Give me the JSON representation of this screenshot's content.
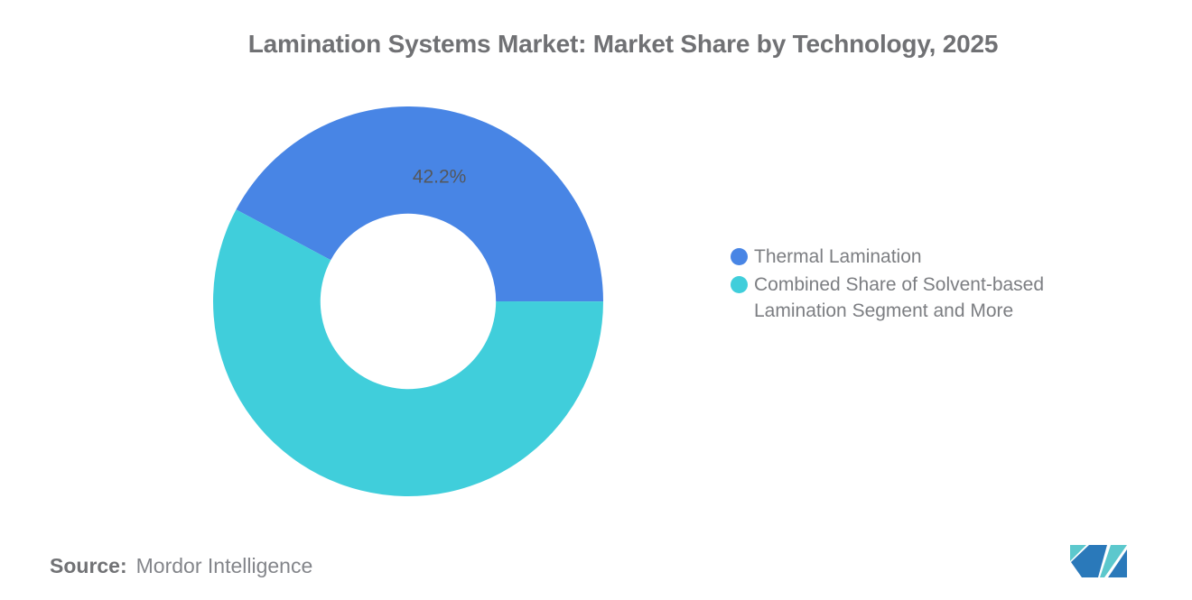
{
  "header": {
    "title": "Lamination Systems Market: Market Share by Technology, 2025"
  },
  "chart_data": {
    "type": "pie",
    "subtype": "donut",
    "title": "Lamination Systems Market: Market Share by Technology, 2025",
    "categories": [
      "Thermal Lamination",
      "Combined Share of Solvent-based Lamination Segment and More"
    ],
    "values": [
      42.2,
      57.8
    ],
    "unit": "%",
    "colors": [
      "#4885E5",
      "#40CEDB"
    ],
    "data_labels": [
      "42.2%",
      ""
    ],
    "start_angle_deg": -61.9,
    "inner_radius_ratio": 0.45,
    "legend_position": "right",
    "background": "#ffffff"
  },
  "legend": {
    "items": [
      {
        "label": "Thermal Lamination",
        "color": "#4885E5"
      },
      {
        "label": "Combined Share of Solvent-based Lamination Segment and More",
        "color": "#40CEDB"
      }
    ]
  },
  "source": {
    "label": "Source:",
    "value": "Mordor Intelligence"
  },
  "logo": {
    "name": "Mordor Intelligence logo mark",
    "blue": "#2A79BA",
    "teal": "#5CC8CD"
  }
}
